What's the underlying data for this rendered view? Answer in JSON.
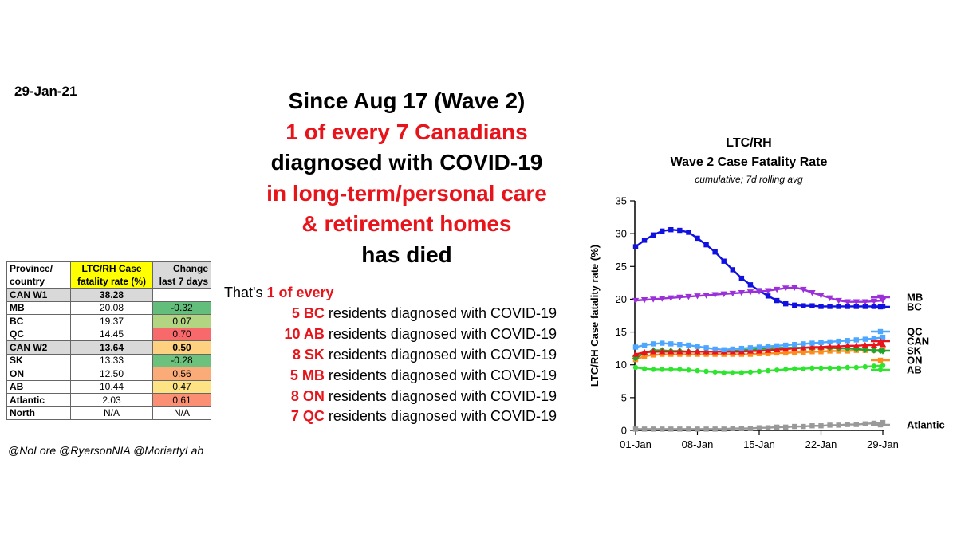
{
  "date": "29-Jan-21",
  "headline": {
    "line1": "Since Aug 17 (Wave 2)",
    "line2": "1 of every  7  Canadians",
    "line3": "diagnosed with COVID-19",
    "line4": "in long-term/personal care",
    "line5": "& retirement homes",
    "line6": "has died"
  },
  "ratio": {
    "intro": "That's ",
    "intro_red": "1 of every",
    "rows": [
      {
        "n": "5 BC",
        "text": " residents diagnosed with COVID-19"
      },
      {
        "n": "10 AB",
        "text": " residents diagnosed with COVID-19"
      },
      {
        "n": "8 SK",
        "text": " residents diagnosed with COVID-19"
      },
      {
        "n": "5 MB",
        "text": " residents diagnosed with COVID-19"
      },
      {
        "n": "8 ON",
        "text": " residents diagnosed with COVID-19"
      },
      {
        "n": "7 QC",
        "text": " residents diagnosed with COVID-19"
      }
    ]
  },
  "table": {
    "headers": [
      "Province/ country",
      "LTC/RH Case fatality rate (%)",
      "Change last 7 days"
    ],
    "rows": [
      {
        "name": "CAN W1",
        "rate": "38.28",
        "change": "",
        "color": "",
        "hl": true
      },
      {
        "name": "MB",
        "rate": "20.08",
        "change": "-0.32",
        "color": "#63be7b",
        "hl": false
      },
      {
        "name": "BC",
        "rate": "19.37",
        "change": "0.07",
        "color": "#b1d580",
        "hl": false
      },
      {
        "name": "QC",
        "rate": "14.45",
        "change": "0.70",
        "color": "#f8696b",
        "hl": false
      },
      {
        "name": "CAN W2",
        "rate": "13.64",
        "change": "0.50",
        "color": "#fdd17f",
        "hl": true
      },
      {
        "name": "SK",
        "rate": "13.33",
        "change": "-0.28",
        "color": "#6cc17c",
        "hl": false
      },
      {
        "name": "ON",
        "rate": "12.50",
        "change": "0.56",
        "color": "#fbab77",
        "hl": false
      },
      {
        "name": "AB",
        "rate": "10.44",
        "change": "0.47",
        "color": "#fde383",
        "hl": false
      },
      {
        "name": "Atlantic",
        "rate": "2.03",
        "change": "0.61",
        "color": "#fa8f73",
        "hl": false
      },
      {
        "name": "North",
        "rate": "N/A",
        "change": "N/A",
        "color": "",
        "hl": false
      }
    ]
  },
  "credits": "@NoLore @RyersonNIA @MoriartyLab",
  "chart_data": {
    "type": "line",
    "title": "LTC/RH",
    "subtitle": "Wave 2 Case Fatality Rate",
    "note": "cumulative; 7d rolling avg",
    "ylabel": "LTC/RH Case fatality rate (%)",
    "xlabel": "",
    "ylim": [
      0,
      35
    ],
    "yticks": [
      "0",
      "5",
      "10",
      "15",
      "20",
      "25",
      "30",
      "35"
    ],
    "xticks": [
      "01-Jan",
      "08-Jan",
      "15-Jan",
      "22-Jan",
      "29-Jan"
    ],
    "x_start_day": 1,
    "x_end_day": 29,
    "series": [
      {
        "name": "MB",
        "color": "#9b30d9",
        "marker": "tri-down",
        "values": [
          19.8,
          19.9,
          20.0,
          20.1,
          20.2,
          20.3,
          20.4,
          20.5,
          20.6,
          20.7,
          20.8,
          20.9,
          21.0,
          21.1,
          21.2,
          21.3,
          21.5,
          21.7,
          21.8,
          21.5,
          21.0,
          20.6,
          20.2,
          19.8,
          19.6,
          19.6,
          19.6,
          19.7,
          19.8
        ]
      },
      {
        "name": "BC",
        "color": "#1010e0",
        "marker": "square",
        "values": [
          28.0,
          29.0,
          29.8,
          30.4,
          30.6,
          30.5,
          30.2,
          29.3,
          28.3,
          27.2,
          25.8,
          24.5,
          23.2,
          22.2,
          21.3,
          20.5,
          19.8,
          19.3,
          19.1,
          19.0,
          19.0,
          18.9,
          18.9,
          18.9,
          18.9,
          18.9,
          18.9,
          18.9,
          18.9
        ]
      },
      {
        "name": "QC",
        "color": "#4da6ff",
        "marker": "square",
        "values": [
          12.7,
          13.0,
          13.2,
          13.3,
          13.2,
          13.1,
          13.0,
          12.8,
          12.6,
          12.4,
          12.3,
          12.4,
          12.5,
          12.6,
          12.7,
          12.8,
          12.9,
          13.0,
          13.1,
          13.2,
          13.3,
          13.4,
          13.5,
          13.6,
          13.7,
          13.8,
          13.9,
          14.0,
          14.2
        ]
      },
      {
        "name": "CAN",
        "color": "#e8141b",
        "marker": "tri-up",
        "values": [
          11.6,
          11.9,
          12.0,
          12.0,
          12.0,
          12.0,
          12.0,
          12.0,
          12.0,
          12.0,
          12.0,
          12.0,
          12.0,
          12.1,
          12.1,
          12.2,
          12.3,
          12.4,
          12.5,
          12.6,
          12.7,
          12.7,
          12.8,
          12.8,
          12.9,
          12.9,
          13.0,
          13.0,
          13.1
        ]
      },
      {
        "name": "SK",
        "color": "#22a32e",
        "marker": "diamond",
        "values": [
          11.0,
          11.8,
          12.2,
          12.2,
          12.1,
          12.1,
          12.0,
          12.0,
          12.0,
          12.0,
          12.0,
          12.1,
          12.2,
          12.3,
          12.4,
          12.5,
          12.6,
          12.6,
          12.6,
          12.6,
          12.6,
          12.6,
          12.6,
          12.5,
          12.5,
          12.4,
          12.3,
          12.2,
          12.1
        ]
      },
      {
        "name": "ON",
        "color": "#ff8c1a",
        "marker": "square",
        "values": [
          10.8,
          11.3,
          11.5,
          11.6,
          11.6,
          11.6,
          11.6,
          11.6,
          11.6,
          11.6,
          11.6,
          11.6,
          11.6,
          11.6,
          11.7,
          11.7,
          11.8,
          11.8,
          11.9,
          11.9,
          12.0,
          12.0,
          12.1,
          12.1,
          12.1,
          12.2,
          12.2,
          12.2,
          12.3
        ]
      },
      {
        "name": "AB",
        "color": "#2de52d",
        "marker": "circle",
        "values": [
          9.6,
          9.4,
          9.3,
          9.3,
          9.3,
          9.3,
          9.2,
          9.1,
          9.0,
          8.9,
          8.8,
          8.8,
          8.8,
          8.9,
          9.0,
          9.1,
          9.2,
          9.3,
          9.4,
          9.4,
          9.5,
          9.5,
          9.5,
          9.5,
          9.6,
          9.6,
          9.7,
          9.8,
          9.9
        ]
      },
      {
        "name": "Atlantic",
        "color": "#999999",
        "marker": "square",
        "values": [
          0.2,
          0.2,
          0.2,
          0.2,
          0.2,
          0.2,
          0.2,
          0.2,
          0.2,
          0.2,
          0.2,
          0.3,
          0.3,
          0.3,
          0.4,
          0.4,
          0.5,
          0.5,
          0.6,
          0.6,
          0.7,
          0.7,
          0.8,
          0.8,
          0.9,
          0.9,
          1.0,
          1.1,
          1.2
        ]
      }
    ],
    "legend_order": [
      "MB",
      "BC",
      "QC",
      "CAN",
      "SK",
      "ON",
      "AB",
      "Atlantic"
    ]
  }
}
